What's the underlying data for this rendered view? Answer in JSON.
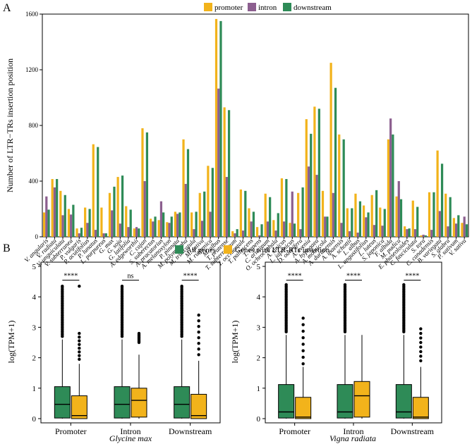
{
  "colors": {
    "promoter": "#F2B31B",
    "intron": "#8C5F8F",
    "downstream": "#2E8B57",
    "all_genes": "#2E8B57",
    "ltr_genes": "#F2B31B"
  },
  "chart_data": [
    {
      "type": "bar",
      "panel_label": "A",
      "title": "",
      "xlabel": "",
      "ylabel": "Number of LTR−TRs insertion position",
      "ylim": [
        0,
        1600
      ],
      "yticks": [
        "0",
        "400",
        "800",
        "1200",
        "1600"
      ],
      "legend": [
        "promoter",
        "intron",
        "downstream"
      ],
      "categories": [
        "V. angularis",
        "V. radiata",
        "V. unguiculata",
        "V. subterranea",
        "P. vulgaris",
        "P. acutifolius",
        "P. lunatus",
        "L. purpureus",
        "G. max",
        "G. soja",
        "G. latifolia",
        "A. edgeworthii",
        "C. cajan",
        "S. suberectus",
        "A. pracatorius",
        "A. melanoxylon",
        "P. pinnata",
        "M. polymorpha",
        "M. truncatula",
        "M. sativa",
        "M. ruthenica",
        "M. albus",
        "T. pratense",
        "T. subterraneum",
        "T. occidentale",
        "T. pallescens",
        "T. repens",
        "C. arietinum",
        "O. ochrocephala",
        "A. sinicus",
        "L. japonicus",
        "D. odorifera",
        "A. evenia",
        "A. hypogaea",
        "A. monticola",
        "A. duranensis",
        "A. ipaensis",
        "A. schottii",
        "L. albus",
        "L. angustifolius",
        "L. luteus",
        "S. japonica",
        "F. albida",
        "M. pudica",
        "E. phaseoloides",
        "C. fasciculata",
        "S. tora",
        "C. canadensis",
        "B. variegata",
        "S. glabra",
        "P. sativum",
        "V. sativa"
      ],
      "series": [
        {
          "name": "promoter",
          "values": [
            175,
            415,
            330,
            200,
            60,
            210,
            665,
            210,
            315,
            430,
            220,
            60,
            780,
            130,
            120,
            105,
            180,
            700,
            175,
            315,
            510,
            1565,
            930,
            40,
            340,
            205,
            70,
            310,
            120,
            420,
            100,
            315,
            845,
            935,
            330,
            1250,
            735,
            205,
            310,
            225,
            300,
            210,
            700,
            290,
            75,
            260,
            10,
            320,
            620,
            310,
            135,
            100
          ]
        },
        {
          "name": "intron",
          "values": [
            290,
            355,
            155,
            160,
            25,
            100,
            50,
            25,
            190,
            95,
            70,
            70,
            400,
            110,
            255,
            100,
            165,
            380,
            55,
            115,
            180,
            1065,
            430,
            25,
            45,
            110,
            10,
            110,
            45,
            110,
            325,
            55,
            505,
            445,
            145,
            315,
            100,
            40,
            30,
            140,
            85,
            80,
            850,
            400,
            55,
            55,
            15,
            50,
            185,
            75,
            95,
            145
          ]
        },
        {
          "name": "downstream",
          "values": [
            195,
            415,
            300,
            230,
            65,
            200,
            645,
            25,
            360,
            440,
            195,
            60,
            750,
            145,
            175,
            145,
            175,
            630,
            180,
            325,
            495,
            1550,
            910,
            55,
            330,
            180,
            90,
            285,
            170,
            415,
            95,
            355,
            740,
            920,
            145,
            1070,
            700,
            205,
            255,
            175,
            335,
            200,
            735,
            270,
            60,
            215,
            10,
            320,
            525,
            285,
            155,
            90
          ]
        }
      ]
    },
    {
      "type": "box",
      "panel_label": "B",
      "title": "Glycine max",
      "ylabel": "log(TPM+1)",
      "ylim": [
        0,
        5
      ],
      "yticks": [
        "0",
        "1",
        "2",
        "3",
        "4",
        "5"
      ],
      "legend": [
        "All genes",
        "Genes with LTR-RTs insertion"
      ],
      "categories": [
        "Promoter",
        "Intron",
        "Downstream"
      ],
      "significance": [
        "****",
        "ns",
        "****"
      ],
      "series": [
        {
          "name": "All genes",
          "boxes": [
            {
              "min": 0,
              "q1": 0.02,
              "median": 0.47,
              "q3": 1.05,
              "max": 2.6,
              "outliers_from": 2.7,
              "outliers_to": 4.35
            },
            {
              "min": 0,
              "q1": 0.02,
              "median": 0.47,
              "q3": 1.05,
              "max": 2.6,
              "outliers_from": 2.7,
              "outliers_to": 4.35
            },
            {
              "min": 0,
              "q1": 0.02,
              "median": 0.47,
              "q3": 1.05,
              "max": 2.6,
              "outliers_from": 2.7,
              "outliers_to": 4.35
            }
          ]
        },
        {
          "name": "Genes with LTR-RTs insertion",
          "boxes": [
            {
              "min": 0,
              "q1": 0.0,
              "median": 0.1,
              "q3": 0.75,
              "max": 1.8,
              "outliers_from": 1.95,
              "outliers_to": 2.8,
              "far_outlier": 4.35
            },
            {
              "min": 0,
              "q1": 0.05,
              "median": 0.6,
              "q3": 1.0,
              "max": 2.1,
              "outliers_from": 2.5,
              "outliers_to": 2.8
            },
            {
              "min": 0,
              "q1": 0.0,
              "median": 0.1,
              "q3": 0.8,
              "max": 1.9,
              "outliers_from": 2.1,
              "outliers_to": 3.4
            }
          ]
        }
      ]
    },
    {
      "type": "box",
      "panel_label": "",
      "title": "Vigna radiata",
      "ylabel": "log(TPM+1)",
      "ylim": [
        0,
        5
      ],
      "yticks": [
        "0",
        "1",
        "2",
        "3",
        "4",
        "5"
      ],
      "categories": [
        "Promoter",
        "Intron",
        "Downstream"
      ],
      "significance": [
        "****",
        "****",
        "****"
      ],
      "series": [
        {
          "name": "All genes",
          "boxes": [
            {
              "min": 0,
              "q1": 0.02,
              "median": 0.22,
              "q3": 1.12,
              "max": 2.75,
              "outliers_from": 2.85,
              "outliers_to": 4.4
            },
            {
              "min": 0,
              "q1": 0.02,
              "median": 0.22,
              "q3": 1.12,
              "max": 2.75,
              "outliers_from": 2.85,
              "outliers_to": 4.4
            },
            {
              "min": 0,
              "q1": 0.02,
              "median": 0.22,
              "q3": 1.12,
              "max": 2.75,
              "outliers_from": 2.85,
              "outliers_to": 4.4
            }
          ]
        },
        {
          "name": "Genes with LTR-RTs insertion",
          "boxes": [
            {
              "min": 0,
              "q1": 0.0,
              "median": 0.05,
              "q3": 0.7,
              "max": 1.7,
              "outliers_from": 1.8,
              "outliers_to": 3.3
            },
            {
              "min": 0,
              "q1": 0.05,
              "median": 0.75,
              "q3": 1.22,
              "max": 2.75,
              "outliers_from": 3.0,
              "outliers_to": 2.75
            },
            {
              "min": 0,
              "q1": 0.0,
              "median": 0.05,
              "q3": 0.7,
              "max": 1.7,
              "outliers_from": 1.9,
              "outliers_to": 2.95
            }
          ]
        }
      ]
    }
  ]
}
